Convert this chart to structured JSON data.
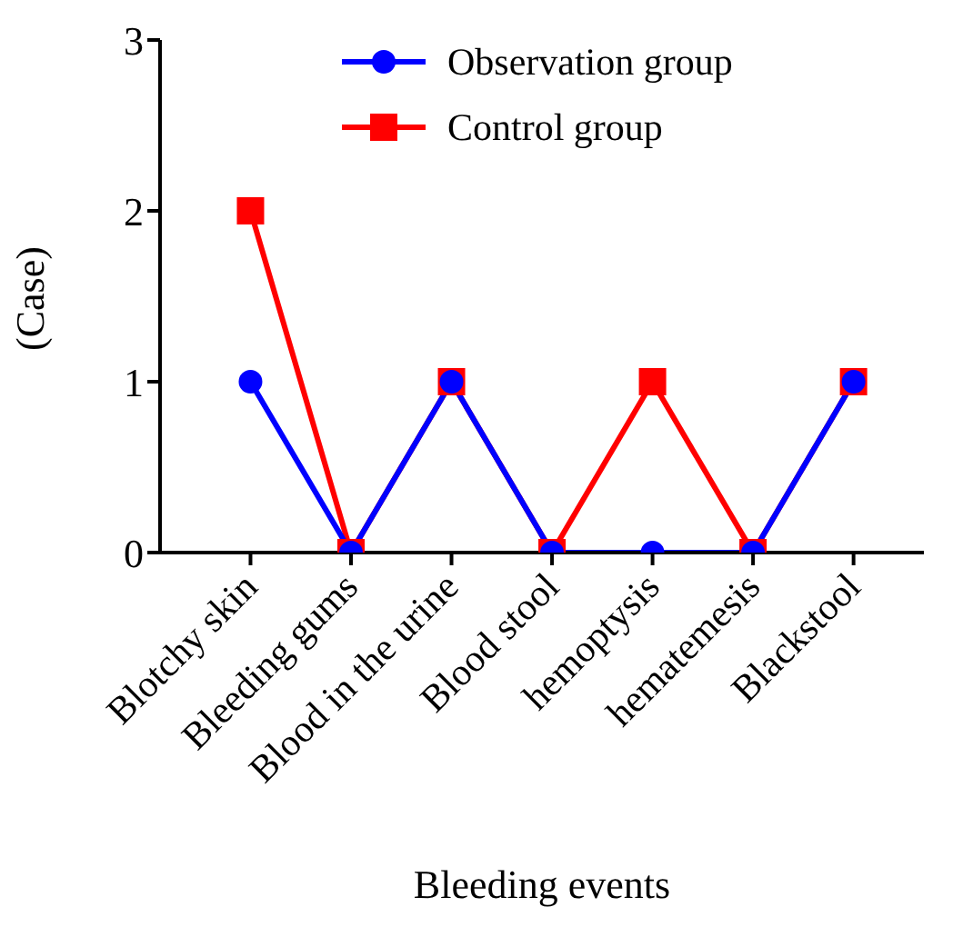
{
  "chart_data": {
    "type": "line",
    "xlabel": "Bleeding events",
    "ylabel": "(Case)",
    "categories": [
      "Blotchy skin",
      "Bleeding gums",
      "Blood in the urine",
      "Blood stool",
      "hemoptysis",
      "hematemesis",
      "Blackstool"
    ],
    "series": [
      {
        "name": "Control group",
        "color": "#ff0000",
        "marker": "square",
        "values": [
          2,
          0,
          1,
          0,
          1,
          0,
          1
        ]
      },
      {
        "name": "Observation group",
        "color": "#0000ff",
        "marker": "circle",
        "values": [
          1,
          0,
          1,
          0,
          0,
          0,
          1
        ]
      }
    ],
    "ylim": [
      0,
      3
    ],
    "yticks": [
      0,
      1,
      2,
      3
    ],
    "grid": false,
    "legend": "top right",
    "line_style": "solid"
  }
}
